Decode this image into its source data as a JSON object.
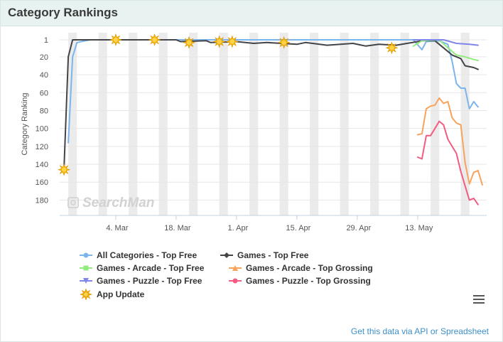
{
  "header": {
    "title": "Category Rankings"
  },
  "watermark": "SearchMan",
  "footer": {
    "api_link": "Get this data via API or Spreadsheet"
  },
  "colors": {
    "all_top_free": "#7cb5ec",
    "games_top_free": "#434348",
    "arcade_top_free": "#90ed7d",
    "arcade_top_grossing": "#f7a35c",
    "puzzle_top_free": "#8085e9",
    "puzzle_top_grossing": "#f15c80",
    "app_update": "#f5b800"
  },
  "chart_data": {
    "type": "line",
    "ylabel": "Category Ranking",
    "y_reversed": true,
    "ylim": [
      1,
      190
    ],
    "y_ticks": [
      1,
      20,
      40,
      60,
      80,
      100,
      120,
      140,
      160,
      180
    ],
    "x_range": [
      "2015-02-19",
      "2015-05-29"
    ],
    "x_ticks": [
      {
        "date": "2015-03-04",
        "label": "4. Mar"
      },
      {
        "date": "2015-03-18",
        "label": "18. Mar"
      },
      {
        "date": "2015-04-01",
        "label": "1. Apr"
      },
      {
        "date": "2015-04-15",
        "label": "15. Apr"
      },
      {
        "date": "2015-04-29",
        "label": "29. Apr"
      },
      {
        "date": "2015-05-13",
        "label": "13. May"
      }
    ],
    "weekend_bands": true,
    "series": [
      {
        "name": "All Categories - Top Free",
        "key": "all_top_free",
        "marker": "circle",
        "points": [
          [
            "2015-02-21",
            116
          ],
          [
            "2015-02-22",
            20
          ],
          [
            "2015-02-23",
            4
          ],
          [
            "2015-02-26",
            1
          ],
          [
            "2015-05-12",
            1
          ],
          [
            "2015-05-14",
            12
          ],
          [
            "2015-05-15",
            3
          ],
          [
            "2015-05-18",
            2
          ],
          [
            "2015-05-20",
            6
          ],
          [
            "2015-05-21",
            25
          ],
          [
            "2015-05-22",
            50
          ],
          [
            "2015-05-23",
            55
          ],
          [
            "2015-05-24",
            55
          ],
          [
            "2015-05-25",
            78
          ],
          [
            "2015-05-26",
            70
          ],
          [
            "2015-05-27",
            76
          ]
        ]
      },
      {
        "name": "Games - Top Free",
        "key": "games_top_free",
        "marker": "diamond",
        "points": [
          [
            "2015-02-20",
            145
          ],
          [
            "2015-02-21",
            20
          ],
          [
            "2015-02-22",
            1
          ],
          [
            "2015-03-18",
            1
          ],
          [
            "2015-03-19",
            3
          ],
          [
            "2015-03-25",
            2
          ],
          [
            "2015-03-26",
            4
          ],
          [
            "2015-04-01",
            3
          ],
          [
            "2015-04-05",
            5
          ],
          [
            "2015-04-08",
            4
          ],
          [
            "2015-04-15",
            6
          ],
          [
            "2015-04-17",
            4
          ],
          [
            "2015-04-22",
            7
          ],
          [
            "2015-04-28",
            5
          ],
          [
            "2015-05-01",
            8
          ],
          [
            "2015-05-04",
            6
          ],
          [
            "2015-05-08",
            7
          ],
          [
            "2015-05-13",
            3
          ],
          [
            "2015-05-14",
            2
          ],
          [
            "2015-05-17",
            2
          ],
          [
            "2015-05-19",
            10
          ],
          [
            "2015-05-21",
            18
          ],
          [
            "2015-05-23",
            22
          ],
          [
            "2015-05-24",
            30
          ],
          [
            "2015-05-26",
            32
          ],
          [
            "2015-05-27",
            34
          ]
        ]
      },
      {
        "name": "Games - Arcade - Top Free",
        "key": "arcade_top_free",
        "marker": "square",
        "points": [
          [
            "2015-05-12",
            8
          ],
          [
            "2015-05-14",
            2
          ],
          [
            "2015-05-18",
            1
          ],
          [
            "2015-05-20",
            10
          ],
          [
            "2015-05-22",
            18
          ],
          [
            "2015-05-24",
            20
          ],
          [
            "2015-05-26",
            23
          ],
          [
            "2015-05-27",
            24
          ]
        ]
      },
      {
        "name": "Games - Arcade - Top Grossing",
        "key": "arcade_top_grossing",
        "marker": "triangle",
        "points": [
          [
            "2015-05-13",
            107
          ],
          [
            "2015-05-14",
            106
          ],
          [
            "2015-05-15",
            78
          ],
          [
            "2015-05-16",
            75
          ],
          [
            "2015-05-17",
            74
          ],
          [
            "2015-05-18",
            66
          ],
          [
            "2015-05-19",
            72
          ],
          [
            "2015-05-20",
            70
          ],
          [
            "2015-05-21",
            88
          ],
          [
            "2015-05-22",
            94
          ],
          [
            "2015-05-23",
            96
          ],
          [
            "2015-05-24",
            138
          ],
          [
            "2015-05-25",
            162
          ],
          [
            "2015-05-26",
            149
          ],
          [
            "2015-05-27",
            147
          ],
          [
            "2015-05-28",
            163
          ]
        ]
      },
      {
        "name": "Games - Puzzle - Top Free",
        "key": "puzzle_top_free",
        "marker": "triangle-down",
        "points": [
          [
            "2015-05-12",
            1
          ],
          [
            "2015-05-19",
            1
          ],
          [
            "2015-05-22",
            5
          ],
          [
            "2015-05-25",
            6
          ],
          [
            "2015-05-27",
            7
          ]
        ]
      },
      {
        "name": "Games - Puzzle - Top Grossing",
        "key": "puzzle_top_grossing",
        "marker": "circle",
        "points": [
          [
            "2015-05-13",
            132
          ],
          [
            "2015-05-14",
            134
          ],
          [
            "2015-05-15",
            108
          ],
          [
            "2015-05-16",
            108
          ],
          [
            "2015-05-17",
            100
          ],
          [
            "2015-05-18",
            92
          ],
          [
            "2015-05-19",
            96
          ],
          [
            "2015-05-20",
            112
          ],
          [
            "2015-05-21",
            120
          ],
          [
            "2015-05-22",
            128
          ],
          [
            "2015-05-23",
            148
          ],
          [
            "2015-05-24",
            164
          ],
          [
            "2015-05-25",
            180
          ],
          [
            "2015-05-26",
            178
          ],
          [
            "2015-05-27",
            185
          ]
        ]
      }
    ],
    "app_updates": {
      "name": "App Update",
      "points": [
        [
          "2015-02-20",
          146
        ],
        [
          "2015-03-04",
          1
        ],
        [
          "2015-03-13",
          1
        ],
        [
          "2015-03-21",
          4
        ],
        [
          "2015-03-28",
          3
        ],
        [
          "2015-03-31",
          3
        ],
        [
          "2015-04-12",
          4
        ],
        [
          "2015-05-07",
          10
        ]
      ]
    }
  }
}
